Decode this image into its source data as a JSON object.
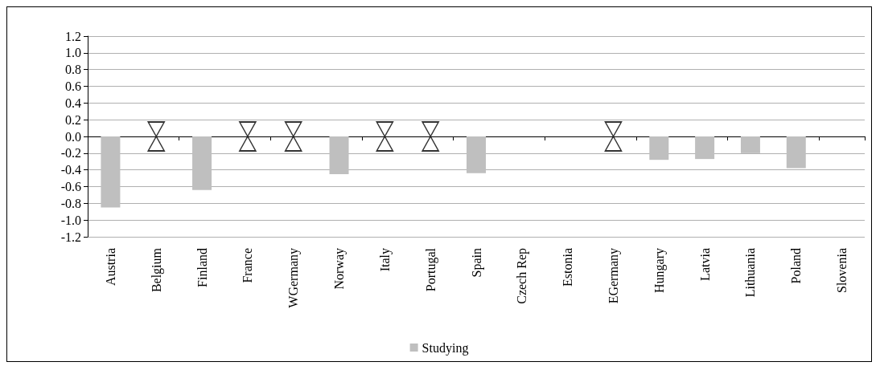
{
  "chart_data": {
    "type": "bar",
    "categories": [
      "Austria",
      "Belgium",
      "Finland",
      "France",
      "WGermany",
      "Norway",
      "Italy",
      "Portugal",
      "Spain",
      "Czech Rep",
      "Estonia",
      "EGermany",
      "Hungary",
      "Latvia",
      "Lithuania",
      "Poland",
      "Slovenia"
    ],
    "series": [
      {
        "name": "Studying",
        "color": "#bfbfbf",
        "values": [
          -0.85,
          null,
          -0.64,
          null,
          null,
          -0.45,
          null,
          null,
          -0.44,
          null,
          null,
          null,
          -0.28,
          -0.27,
          -0.2,
          -0.38,
          null
        ]
      },
      {
        "type": "scatter",
        "color": "#000000",
        "values": [
          null,
          0,
          null,
          0,
          0,
          null,
          0,
          0,
          null,
          null,
          null,
          0,
          null,
          null,
          null,
          null,
          null
        ]
      }
    ],
    "ylim": [
      -1.2,
      1.2
    ],
    "yticks": [
      {
        "value": -1.2,
        "label": "-1.2"
      },
      {
        "value": -1,
        "label": "-1.0"
      },
      {
        "value": -0.8,
        "label": "-0.8"
      },
      {
        "value": -0.6,
        "label": "-0.6"
      },
      {
        "value": -0.4,
        "label": "-0.4"
      },
      {
        "value": -0.2,
        "label": "-0.2"
      },
      {
        "value": 0,
        "label": "0.0"
      },
      {
        "value": 0.2,
        "label": "0.2"
      },
      {
        "value": 0.4,
        "label": "0.4"
      },
      {
        "value": 0.6,
        "label": "0.6"
      },
      {
        "value": 0.8,
        "label": "0.8"
      },
      {
        "value": 1,
        "label": "1.0"
      },
      {
        "value": 1.2,
        "label": "1.2"
      }
    ],
    "grid": "y",
    "legend": "bottom"
  }
}
